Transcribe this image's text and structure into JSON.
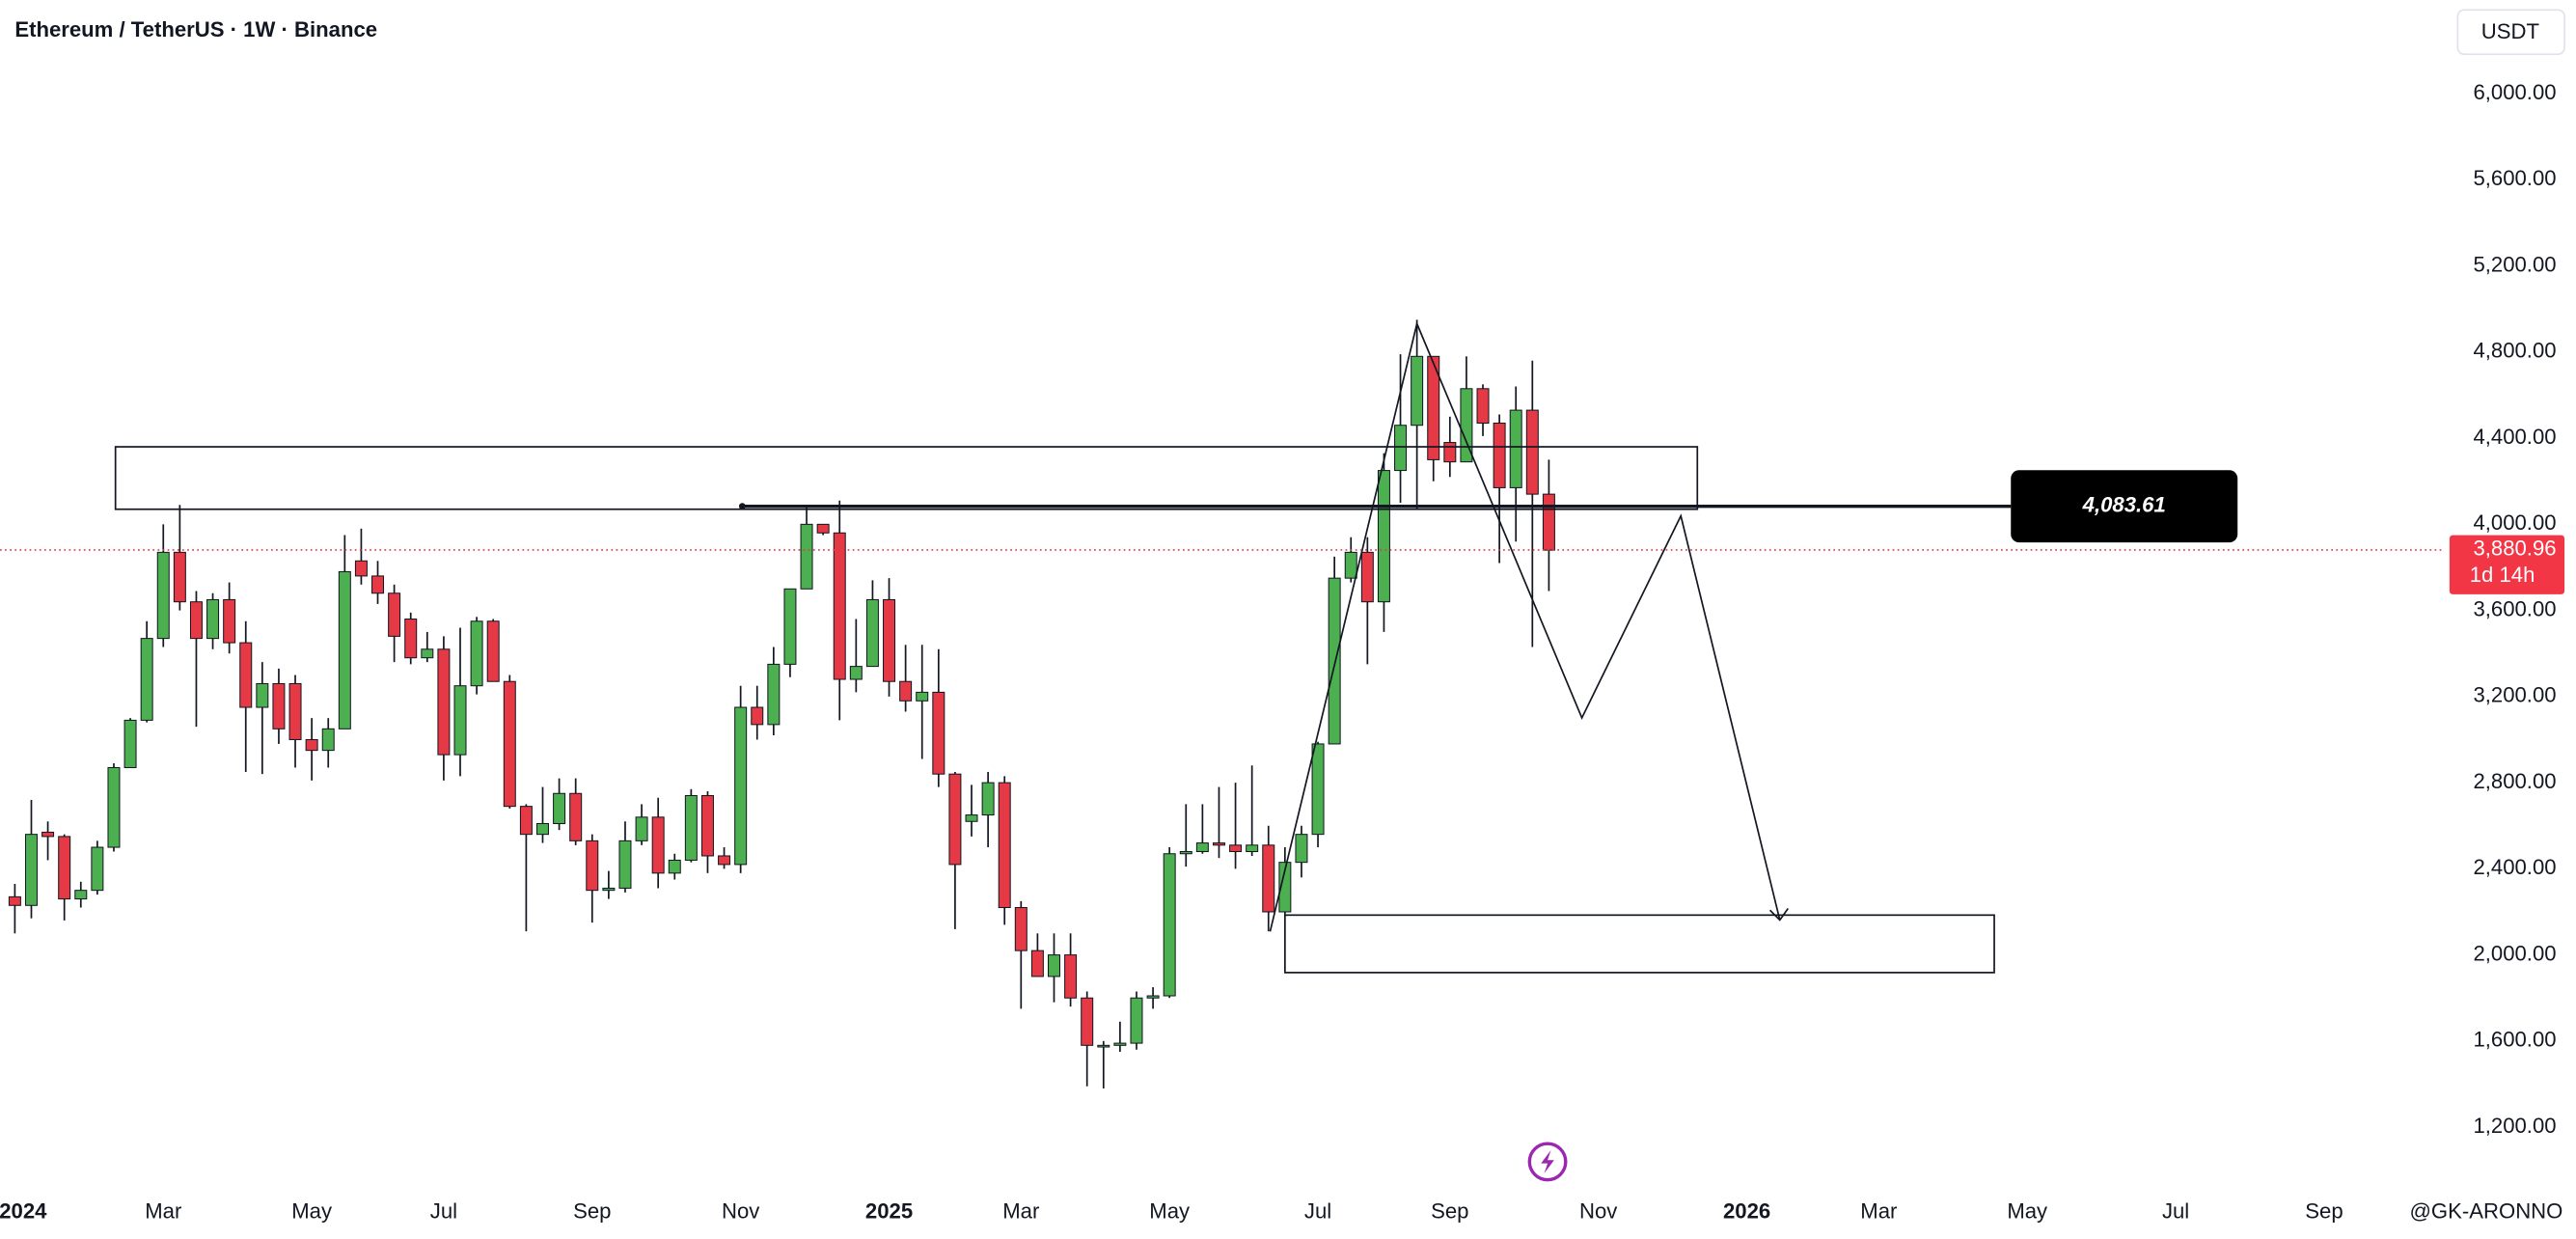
{
  "chart_data": {
    "type": "candlestick",
    "title": "Ethereum / TetherUS · 1W · Binance",
    "currency": "USDT",
    "watermark": "@GK-ARONNO",
    "up_color": "#4caf50",
    "down_color": "#e53945",
    "open": [
      2270,
      2230,
      2570,
      2550,
      2260,
      2300,
      2500,
      2870,
      3090,
      3470,
      3870,
      3640,
      3470,
      3650,
      3450,
      3150,
      3260,
      3260,
      3000,
      2950,
      3050,
      3830,
      3760,
      3680,
      3560,
      3380,
      3420,
      2930,
      3250,
      3550,
      3270,
      2690,
      2560,
      2610,
      2750,
      2530,
      2300,
      2310,
      2530,
      2640,
      2380,
      2440,
      2740,
      2460,
      2420,
      3150,
      3070,
      3350,
      3700,
      4000,
      3960,
      3280,
      3340,
      3650,
      3270,
      3180,
      3220,
      2840,
      2620,
      2650,
      2800,
      2220,
      2020,
      1900,
      2000,
      1800,
      1580,
      1580,
      1590,
      1800,
      1810,
      2470,
      2480,
      2520,
      2510,
      2480,
      2510,
      2200,
      2430,
      2560,
      2980,
      3750,
      3870,
      3640,
      4250,
      4460,
      4780,
      4380,
      4290,
      4630,
      4470,
      4170,
      4530,
      4140
    ],
    "high": [
      2330,
      2720,
      2620,
      2560,
      2340,
      2530,
      2890,
      3100,
      3550,
      4000,
      4090,
      3690,
      3680,
      3730,
      3550,
      3360,
      3330,
      3300,
      3100,
      3100,
      3950,
      3980,
      3830,
      3720,
      3590,
      3500,
      3480,
      3520,
      3570,
      3560,
      3300,
      2700,
      2780,
      2820,
      2820,
      2560,
      2390,
      2620,
      2700,
      2730,
      2470,
      2770,
      2760,
      2500,
      3250,
      3250,
      3430,
      3700,
      4090,
      4000,
      4110,
      3560,
      3740,
      3750,
      3440,
      3440,
      3420,
      2850,
      2790,
      2850,
      2830,
      2250,
      2100,
      2100,
      2100,
      1830,
      1600,
      1690,
      1830,
      1850,
      2500,
      2700,
      2700,
      2780,
      2800,
      2880,
      2600,
      2500,
      2600,
      2990,
      3850,
      3940,
      3940,
      4330,
      4790,
      4950,
      4780,
      4500,
      4780,
      4650,
      4510,
      4640,
      4760,
      4300
    ],
    "low": [
      2100,
      2170,
      2440,
      2160,
      2220,
      2280,
      2480,
      2870,
      3080,
      3430,
      3600,
      3060,
      3420,
      3400,
      2850,
      2840,
      2980,
      2870,
      2810,
      2870,
      3050,
      3720,
      3630,
      3360,
      3350,
      3360,
      2810,
      2830,
      3210,
      3290,
      2680,
      2110,
      2520,
      2580,
      2510,
      2150,
      2260,
      2290,
      2510,
      2310,
      2350,
      2430,
      2380,
      2400,
      2380,
      3000,
      3020,
      3290,
      3700,
      3950,
      3090,
      3220,
      3340,
      3200,
      3130,
      2910,
      2780,
      2120,
      2550,
      2500,
      2140,
      1750,
      1900,
      1780,
      1760,
      1390,
      1380,
      1550,
      1560,
      1750,
      1800,
      2410,
      2470,
      2450,
      2400,
      2460,
      2110,
      2180,
      2360,
      2500,
      2980,
      3730,
      3350,
      3500,
      4100,
      4070,
      4200,
      4220,
      4300,
      4410,
      3820,
      3920,
      3430,
      3690
    ],
    "close": [
      2230,
      2560,
      2550,
      2260,
      2300,
      2500,
      2870,
      3090,
      3470,
      3870,
      3640,
      3470,
      3650,
      3450,
      3150,
      3260,
      3050,
      3000,
      2950,
      3050,
      3780,
      3760,
      3680,
      3480,
      3380,
      3420,
      2930,
      3250,
      3550,
      3270,
      2690,
      2560,
      2610,
      2750,
      2530,
      2300,
      2310,
      2530,
      2640,
      2380,
      2440,
      2740,
      2460,
      2420,
      3150,
      3070,
      3350,
      3700,
      4000,
      3960,
      3280,
      3340,
      3650,
      3270,
      3180,
      3220,
      2840,
      2420,
      2650,
      2800,
      2220,
      2020,
      1900,
      2000,
      1800,
      1580,
      1580,
      1590,
      1800,
      1810,
      2470,
      2480,
      2520,
      2510,
      2480,
      2510,
      2200,
      2430,
      2560,
      2980,
      3750,
      3870,
      3640,
      4250,
      4460,
      4780,
      4300,
      4290,
      4630,
      4470,
      4170,
      4530,
      4140,
      3880
    ],
    "xlim": [
      -0.9,
      147.3
    ],
    "xticks": [
      {
        "value": 0,
        "label": "2024"
      },
      {
        "value": 9,
        "label": "Mar"
      },
      {
        "value": 18,
        "label": "May"
      },
      {
        "value": 26,
        "label": "Jul"
      },
      {
        "value": 35,
        "label": "Sep"
      },
      {
        "value": 44,
        "label": "Nov"
      },
      {
        "value": 53,
        "label": "2025"
      },
      {
        "value": 61,
        "label": "Mar"
      },
      {
        "value": 70,
        "label": "May"
      },
      {
        "value": 79,
        "label": "Jul"
      },
      {
        "value": 87,
        "label": "Sep"
      },
      {
        "value": 96,
        "label": "Nov"
      },
      {
        "value": 105,
        "label": "2026"
      },
      {
        "value": 113,
        "label": "Mar"
      },
      {
        "value": 122,
        "label": "May"
      },
      {
        "value": 131,
        "label": "Jul"
      },
      {
        "value": 140,
        "label": "Sep"
      }
    ],
    "ylim": [
      925,
      6435
    ],
    "yticks": [
      {
        "value": 1200,
        "label": "1,200.00"
      },
      {
        "value": 1600,
        "label": "1,600.00"
      },
      {
        "value": 2000,
        "label": "2,000.00"
      },
      {
        "value": 2400,
        "label": "2,400.00"
      },
      {
        "value": 2800,
        "label": "2,800.00"
      },
      {
        "value": 3200,
        "label": "3,200.00"
      },
      {
        "value": 3600,
        "label": "3,600.00"
      },
      {
        "value": 4000,
        "label": "4,000.00"
      },
      {
        "value": 4400,
        "label": "4,400.00"
      },
      {
        "value": 4800,
        "label": "4,800.00"
      },
      {
        "value": 5200,
        "label": "5,200.00"
      },
      {
        "value": 5600,
        "label": "5,600.00"
      },
      {
        "value": 6000,
        "label": "6,000.00"
      }
    ],
    "level": {
      "value": 4083.61,
      "label": "4,083.61",
      "from": 44.1
    },
    "last_price": {
      "value": 3880.96,
      "label": "3,880.96",
      "countdown": "1d 14h"
    },
    "zones": [
      {
        "x": [
          6.1,
          102
        ],
        "y": [
          4070,
          4360
        ]
      },
      {
        "x": [
          77,
          120
        ],
        "y": [
          1918,
          2185
        ]
      }
    ],
    "path": {
      "x": [
        76.1,
        85,
        95,
        101,
        107
      ],
      "y": [
        2109,
        4932,
        3101,
        4039,
        2162
      ]
    }
  }
}
